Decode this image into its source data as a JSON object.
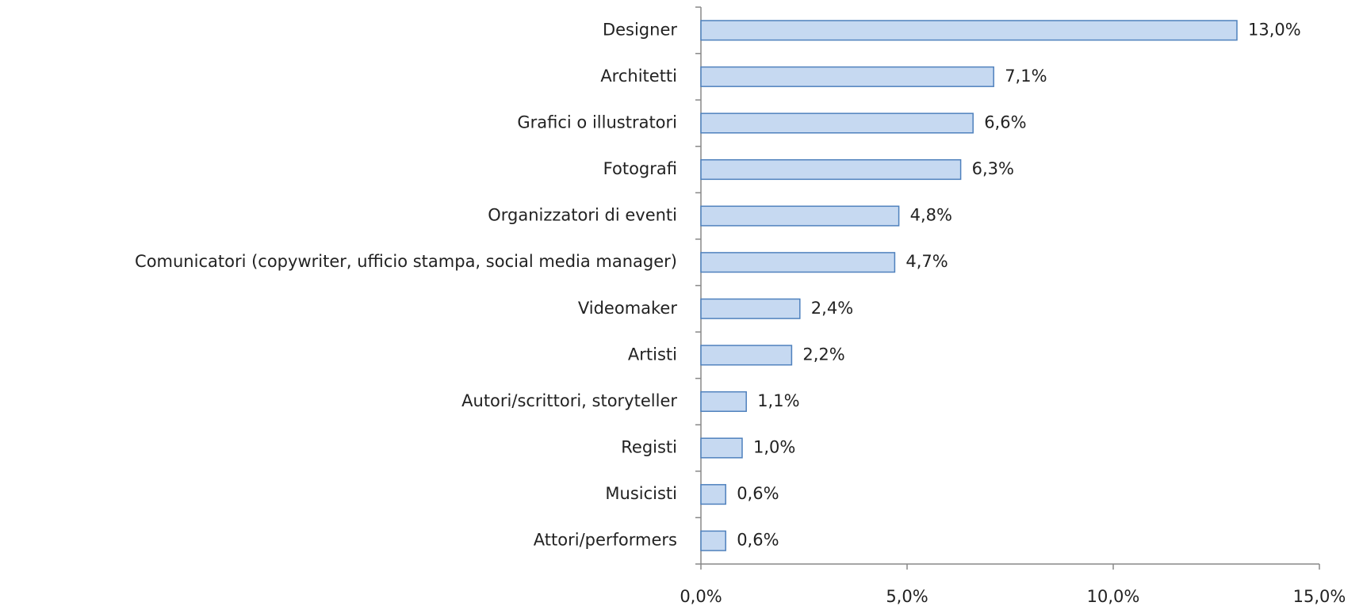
{
  "chart_data": {
    "type": "bar",
    "orientation": "horizontal",
    "categories": [
      "Designer",
      "Architetti",
      "Grafici o illustratori",
      "Fotografi",
      "Organizzatori di eventi",
      "Comunicatori (copywriter, ufficio stampa, social media manager)",
      "Videomaker",
      "Artisti",
      "Autori/scrittori, storyteller",
      "Registi",
      "Musicisti",
      "Attori/performers"
    ],
    "values": [
      13.0,
      7.1,
      6.6,
      6.3,
      4.8,
      4.7,
      2.4,
      2.2,
      1.1,
      1.0,
      0.6,
      0.6
    ],
    "value_labels": [
      "13,0%",
      "7,1%",
      "6,6%",
      "6,3%",
      "4,8%",
      "4,7%",
      "2,4%",
      "2,2%",
      "1,1%",
      "1,0%",
      "0,6%",
      "0,6%"
    ],
    "color": "#c6d9f1",
    "edge_color": "#4f81bd",
    "xlim": [
      0,
      15
    ],
    "xticks": [
      {
        "value": 0,
        "label": "0,0%"
      },
      {
        "value": 5,
        "label": "5,0%"
      },
      {
        "value": 10,
        "label": "10,0%"
      },
      {
        "value": 15,
        "label": "15,0%"
      }
    ],
    "grid": false
  }
}
